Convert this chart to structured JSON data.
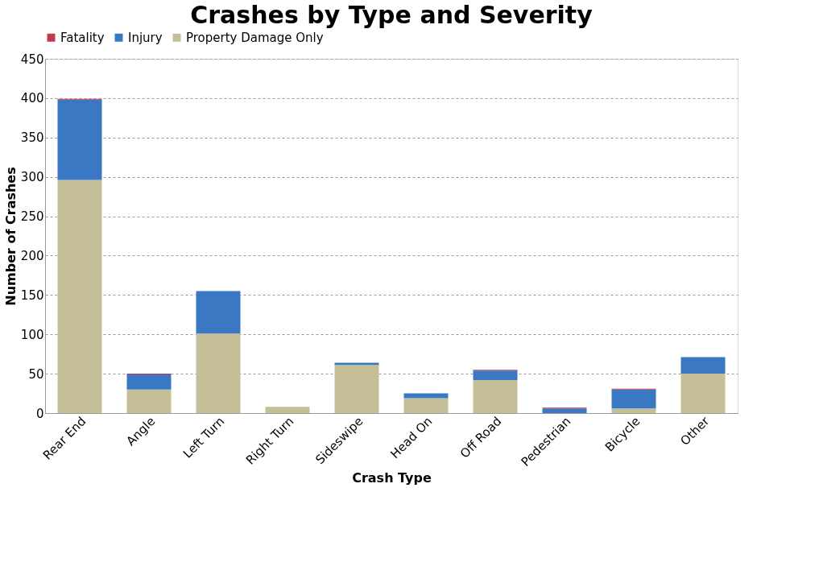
{
  "chart_data": {
    "type": "bar",
    "title": "Crashes by Type and Severity",
    "xlabel": "Crash Type",
    "ylabel": "Number of Crashes",
    "categories": [
      "Rear End",
      "Angle",
      "Left Turn",
      "Right Turn",
      "Sideswipe",
      "Head On",
      "Off Road",
      "Pedestrian",
      "Bicycle",
      "Other"
    ],
    "stacked": true,
    "series": [
      {
        "name": "Property Damage Only",
        "color": "#c4bf96",
        "values": [
          296,
          30,
          101,
          8,
          61,
          19,
          42,
          null,
          6,
          50
        ]
      },
      {
        "name": "Injury",
        "color": "#3a78c4",
        "values": [
          102,
          19,
          54,
          0,
          3,
          6,
          12,
          6,
          24,
          21
        ]
      },
      {
        "name": "Fatality",
        "color": "#c0394e",
        "values": [
          1,
          1,
          0,
          0,
          0,
          0,
          1,
          1,
          1,
          0
        ]
      }
    ],
    "ylim": [
      0,
      450
    ],
    "yticks": [
      0,
      50,
      100,
      150,
      200,
      250,
      300,
      350,
      400,
      450
    ],
    "grid": "y",
    "legend": "top"
  }
}
